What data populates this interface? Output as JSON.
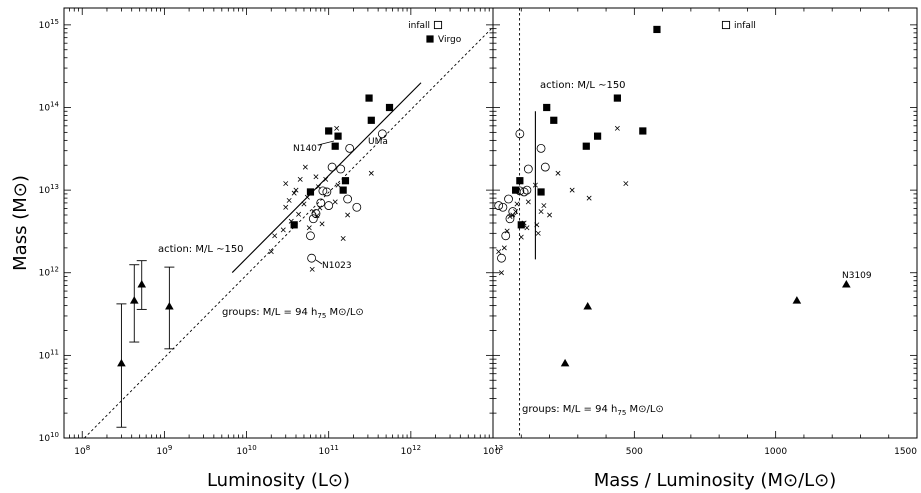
{
  "chart_data": [
    {
      "type": "scatter",
      "panel": "left",
      "xlabel": "Luminosity (L⊙)",
      "ylabel": "Mass (M⊙)",
      "x_scale": "log",
      "y_scale": "log",
      "xlim": [
        60000000.0,
        10000000000000.0
      ],
      "ylim": [
        10000000000.0,
        1600000000000000.0
      ],
      "x_ticks": [
        {
          "v": 100000000.0,
          "base": "10",
          "exp": "8"
        },
        {
          "v": 1000000000.0,
          "base": "10",
          "exp": "9"
        },
        {
          "v": 10000000000.0,
          "base": "10",
          "exp": "10"
        },
        {
          "v": 100000000000.0,
          "base": "10",
          "exp": "11"
        },
        {
          "v": 1000000000000.0,
          "base": "10",
          "exp": "12"
        },
        {
          "v": 10000000000000.0,
          "base": "10",
          "exp": "13"
        }
      ],
      "y_ticks": [
        {
          "v": 10000000000.0,
          "base": "10",
          "exp": "10"
        },
        {
          "v": 100000000000.0,
          "base": "10",
          "exp": "11"
        },
        {
          "v": 1000000000000.0,
          "base": "10",
          "exp": "12"
        },
        {
          "v": 10000000000000.0,
          "base": "10",
          "exp": "13"
        },
        {
          "v": 100000000000000.0,
          "base": "10",
          "exp": "14"
        },
        {
          "v": 1000000000000000.0,
          "base": "10",
          "exp": "15"
        }
      ],
      "legend": [
        {
          "label": "infall",
          "marker": "open-square"
        },
        {
          "label": "Virgo",
          "marker": "filled-square"
        }
      ],
      "annotations": {
        "action": "action: M/L ∼150",
        "groups_prefix": "groups: M/L = 94 h",
        "groups_sub": "75",
        "groups_unit": " M⊙/L⊙",
        "n1407": "N1407",
        "uma": "UMa",
        "n1023": "N1023"
      },
      "lines": {
        "groups_dashed": {
          "ml": 94,
          "x_range": [
            106000000.0,
            10000000000000.0
          ]
        },
        "action_solid": {
          "ml": 150,
          "x_range": [
            6700000000.0,
            1330000000000.0
          ]
        }
      },
      "series": [
        {
          "name": "infall",
          "marker": "filled-square",
          "points": [
            [
              100000000000.0,
              52000000000000.0
            ],
            [
              120000000000.0,
              34000000000000.0
            ],
            [
              130000000000.0,
              45000000000000.0
            ],
            [
              310000000000.0,
              130000000000000.0
            ],
            [
              330000000000.0,
              70000000000000.0
            ],
            [
              550000000000.0,
              100000000000000.0
            ],
            [
              60000000000.0,
              9500000000000.0
            ],
            [
              160000000000.0,
              13000000000000.0
            ],
            [
              150000000000.0,
              10000000000000.0
            ],
            [
              38000000000.0,
              3800000000000.0
            ]
          ]
        },
        {
          "name": "",
          "marker": "open-circle",
          "points": [
            [
              60000000000.0,
              2800000000000.0
            ],
            [
              65000000000.0,
              4500000000000.0
            ],
            [
              70000000000.0,
              5200000000000.0
            ],
            [
              80000000000.0,
              7000000000000.0
            ],
            [
              100000000000.0,
              6500000000000.0
            ],
            [
              110000000000.0,
              19000000000000.0
            ],
            [
              95000000000.0,
              9500000000000.0
            ],
            [
              140000000000.0,
              18000000000000.0
            ],
            [
              170000000000.0,
              7800000000000.0
            ],
            [
              180000000000.0,
              32000000000000.0
            ],
            [
              220000000000.0,
              6200000000000.0
            ],
            [
              450000000000.0,
              48000000000000.0
            ],
            [
              62000000000.0,
              1500000000000.0
            ],
            [
              85000000000.0,
              9800000000000.0
            ]
          ]
        },
        {
          "name": "",
          "marker": "cross",
          "points": [
            [
              20000000000.0,
              1800000000000.0
            ],
            [
              22000000000.0,
              2800000000000.0
            ],
            [
              28000000000.0,
              3300000000000.0
            ],
            [
              30000000000.0,
              6200000000000.0
            ],
            [
              33000000000.0,
              7500000000000.0
            ],
            [
              35000000000.0,
              4200000000000.0
            ],
            [
              38000000000.0,
              9200000000000.0
            ],
            [
              43000000000.0,
              5100000000000.0
            ],
            [
              50000000000.0,
              6800000000000.0
            ],
            [
              55000000000.0,
              8200000000000.0
            ],
            [
              58000000000.0,
              3500000000000.0
            ],
            [
              63000000000.0,
              1100000000000.0
            ],
            [
              66000000000.0,
              5500000000000.0
            ],
            [
              72000000000.0,
              4900000000000.0
            ],
            [
              75000000000.0,
              11000000000000.0
            ],
            [
              78000000000.0,
              6100000000000.0
            ],
            [
              83000000000.0,
              3900000000000.0
            ],
            [
              120000000000.0,
              7200000000000.0
            ],
            [
              130000000000.0,
              11500000000000.0
            ],
            [
              150000000000.0,
              2600000000000.0
            ],
            [
              170000000000.0,
              5000000000000.0
            ],
            [
              30000000000.0,
              12000000000000.0
            ],
            [
              52000000000.0,
              19000000000000.0
            ],
            [
              92000000000.0,
              13500000000000.0
            ],
            [
              125000000000.0,
              56000000000000.0
            ],
            [
              330000000000.0,
              16000000000000.0
            ],
            [
              40000000000.0,
              10000000000000.0
            ],
            [
              45000000000.0,
              13500000000000.0
            ],
            [
              70000000000.0,
              14500000000000.0
            ]
          ]
        },
        {
          "name": "",
          "marker": "filled-triangle",
          "points": [
            [
              300000000.0,
              80000000000.0
            ],
            [
              430000000.0,
              460000000000.0
            ],
            [
              530000000.0,
              720000000000.0
            ],
            [
              1150000000.0,
              390000000000.0
            ]
          ],
          "error_bars": [
            [
              13500000000.0,
              420000000000.0
            ],
            [
              145000000000.0,
              1250000000000.0
            ],
            [
              360000000000.0,
              1400000000000.0
            ],
            [
              120000000000.0,
              1170000000000.0
            ]
          ]
        }
      ]
    },
    {
      "type": "scatter",
      "panel": "right",
      "xlabel": "Mass / Luminosity (M⊙/L⊙)",
      "x_scale": "linear",
      "y_scale": "log",
      "xlim": [
        0,
        1500
      ],
      "ylim": [
        10000000000.0,
        1600000000000000.0
      ],
      "x_ticks": [
        0,
        500,
        1000,
        1500
      ],
      "legend": [
        {
          "label": "infall",
          "marker": "open-square"
        }
      ],
      "annotations": {
        "action": "action: M/L ∼150",
        "groups_prefix": "groups: M/L = 94 h",
        "groups_sub": "75",
        "groups_unit": " M⊙/L⊙",
        "n3109": "N3109"
      },
      "lines": {
        "groups_dashed_x": 94,
        "action_solid": {
          "x": 150,
          "y_range": [
            1450000000000.0,
            90000000000000.0
          ]
        }
      },
      "series": [
        {
          "name": "infall",
          "marker": "filled-square",
          "points": [
            [
              580,
              880000000000000.0
            ],
            [
              440,
              130000000000000.0
            ],
            [
              530,
              52000000000000.0
            ],
            [
              370,
              45000000000000.0
            ],
            [
              330,
              34000000000000.0
            ],
            [
              190,
              100000000000000.0
            ],
            [
              215,
              70000000000000.0
            ],
            [
              170,
              9500000000000.0
            ],
            [
              100,
              3800000000000.0
            ],
            [
              95,
              13000000000000.0
            ],
            [
              80,
              10000000000000.0
            ]
          ]
        },
        {
          "name": "",
          "marker": "open-circle",
          "points": [
            [
              95,
              48000000000000.0
            ],
            [
              170,
              32000000000000.0
            ],
            [
              185,
              19000000000000.0
            ],
            [
              125,
              18000000000000.0
            ],
            [
              110,
              9500000000000.0
            ],
            [
              120,
              10000000000000.0
            ],
            [
              55,
              7800000000000.0
            ],
            [
              35,
              6200000000000.0
            ],
            [
              20,
              6500000000000.0
            ],
            [
              70,
              5500000000000.0
            ],
            [
              60,
              4500000000000.0
            ],
            [
              45,
              2800000000000.0
            ],
            [
              30,
              1500000000000.0
            ],
            [
              95,
              9800000000000.0
            ]
          ]
        },
        {
          "name": "",
          "marker": "cross",
          "points": [
            [
              440,
              56000000000000.0
            ],
            [
              470,
              12000000000000.0
            ],
            [
              340,
              8000000000000.0
            ],
            [
              280,
              10000000000000.0
            ],
            [
              180,
              6500000000000.0
            ],
            [
              170,
              5500000000000.0
            ],
            [
              200,
              5000000000000.0
            ],
            [
              155,
              3800000000000.0
            ],
            [
              160,
              3000000000000.0
            ],
            [
              120,
              3500000000000.0
            ],
            [
              110,
              4000000000000.0
            ],
            [
              80,
              5500000000000.0
            ],
            [
              70,
              5000000000000.0
            ],
            [
              60,
              4800000000000.0
            ],
            [
              50,
              3200000000000.0
            ],
            [
              40,
              2000000000000.0
            ],
            [
              30,
              1000000000000.0
            ],
            [
              100,
              2700000000000.0
            ],
            [
              85,
              6800000000000.0
            ],
            [
              150,
              11500000000000.0
            ],
            [
              230,
              16000000000000.0
            ],
            [
              125,
              7200000000000.0
            ],
            [
              20,
              1800000000000.0
            ]
          ]
        },
        {
          "name": "",
          "marker": "filled-triangle",
          "points": [
            [
              255,
              80000000000.0
            ],
            [
              335,
              390000000000.0
            ],
            [
              1075,
              460000000000.0
            ],
            [
              1250,
              720000000000.0
            ]
          ]
        }
      ]
    }
  ]
}
